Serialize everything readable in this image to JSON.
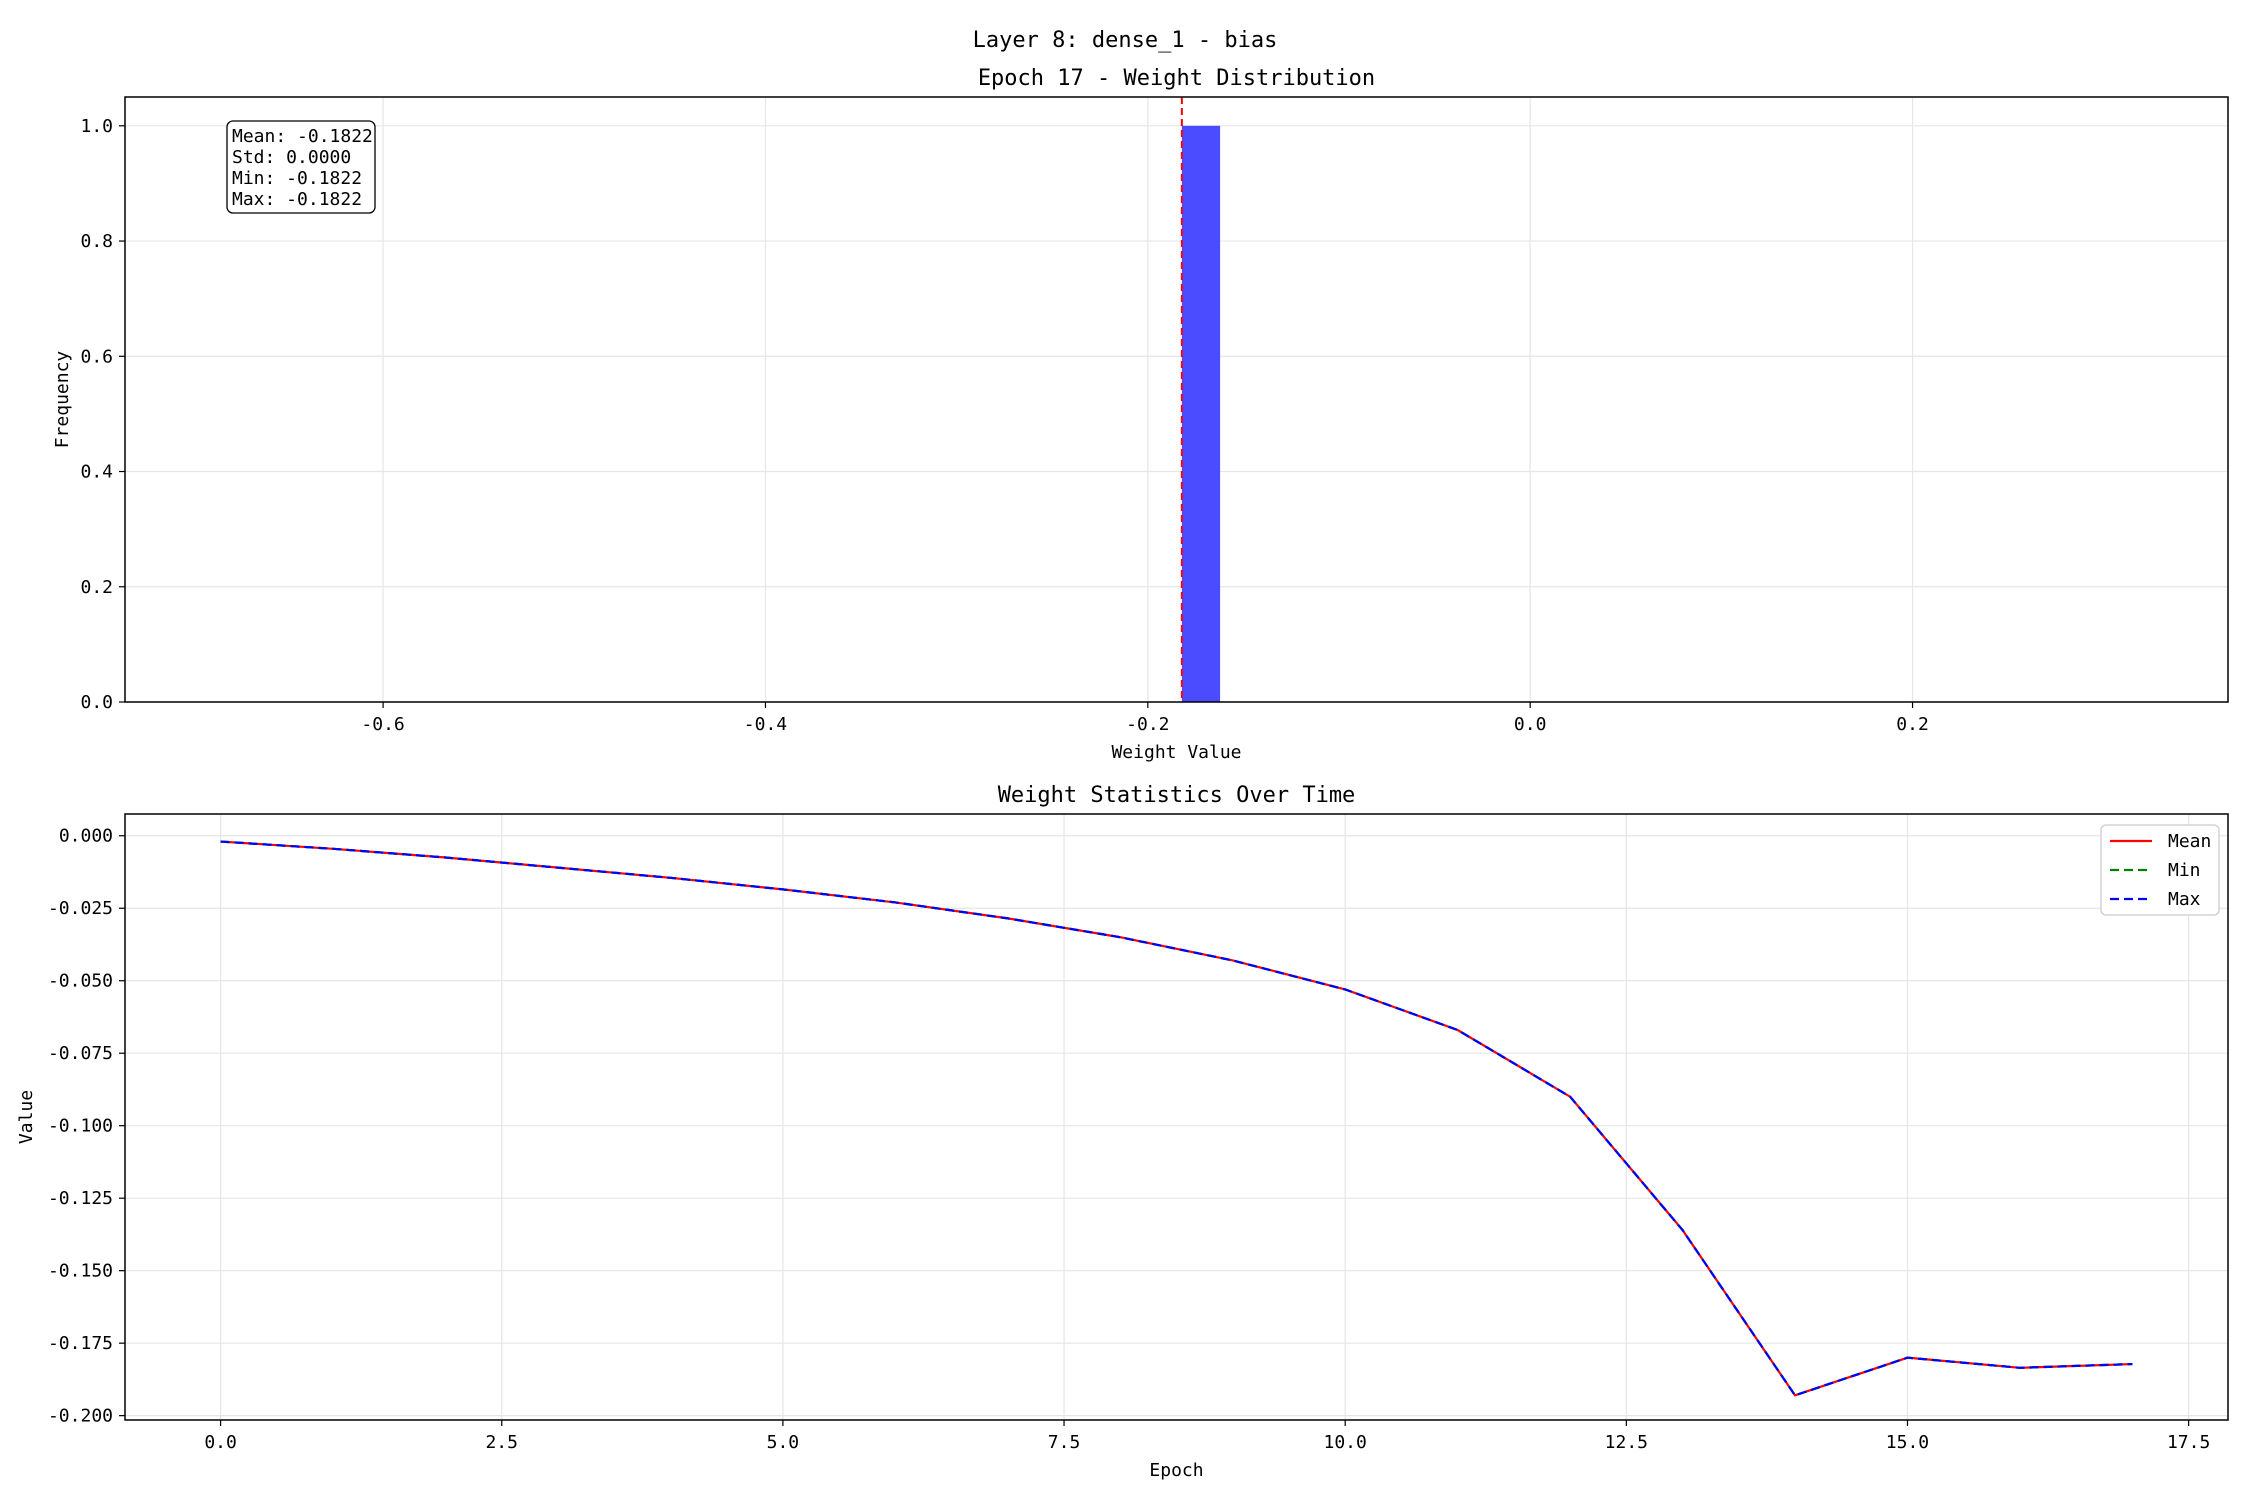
{
  "figure": {
    "suptitle": "Layer 8: dense_1 - bias"
  },
  "colors": {
    "bar": "#4b4bff",
    "mean_line": "#ff0000",
    "min_line": "#008000",
    "max_line": "#0000ff",
    "grid": "#e6e6e6"
  },
  "chart_data": [
    {
      "type": "bar",
      "title": "Epoch 17 - Weight Distribution",
      "xlabel": "Weight Value",
      "ylabel": "Frequency",
      "xlim": [
        -0.735,
        0.365
      ],
      "ylim": [
        0,
        1.05
      ],
      "xticks": [
        -0.6,
        -0.4,
        -0.2,
        0.0,
        0.2
      ],
      "xtick_labels": [
        "-0.6",
        "-0.4",
        "-0.2",
        "0.0",
        "0.2"
      ],
      "yticks": [
        0.0,
        0.2,
        0.4,
        0.6,
        0.8,
        1.0
      ],
      "ytick_labels": [
        "0.0",
        "0.2",
        "0.4",
        "0.6",
        "0.8",
        "1.0"
      ],
      "bins": [
        {
          "x0": -0.1822,
          "x1": -0.1622,
          "value": 1.0
        }
      ],
      "mean_line": -0.1822,
      "grid": true,
      "stats_box": {
        "position": "top-left",
        "lines": [
          "Mean: -0.1822",
          "Std: 0.0000",
          "Min: -0.1822",
          "Max: -0.1822"
        ]
      }
    },
    {
      "type": "line",
      "title": "Weight Statistics Over Time",
      "xlabel": "Epoch",
      "ylabel": "Value",
      "xlim": [
        -0.85,
        17.85
      ],
      "ylim": [
        -0.2015,
        0.0075
      ],
      "xticks": [
        0.0,
        2.5,
        5.0,
        7.5,
        10.0,
        12.5,
        15.0,
        17.5
      ],
      "xtick_labels": [
        "0.0",
        "2.5",
        "5.0",
        "7.5",
        "10.0",
        "12.5",
        "15.0",
        "17.5"
      ],
      "yticks": [
        0.0,
        -0.025,
        -0.05,
        -0.075,
        -0.1,
        -0.125,
        -0.15,
        -0.175,
        -0.2
      ],
      "ytick_labels": [
        "0.000",
        "-0.025",
        "-0.050",
        "-0.075",
        "-0.100",
        "-0.125",
        "-0.150",
        "-0.175",
        "-0.200"
      ],
      "grid": true,
      "legend": "top-right",
      "x": [
        0,
        1,
        2,
        3,
        4,
        5,
        6,
        7,
        8,
        9,
        10,
        11,
        12,
        13,
        14,
        15,
        16,
        17
      ],
      "series": [
        {
          "name": "Mean",
          "style": "solid",
          "values": [
            -0.002,
            -0.0045,
            -0.0075,
            -0.011,
            -0.0145,
            -0.0185,
            -0.023,
            -0.0285,
            -0.035,
            -0.043,
            -0.053,
            -0.067,
            -0.09,
            -0.136,
            -0.193,
            -0.18,
            -0.1835,
            -0.1822
          ]
        },
        {
          "name": "Min",
          "style": "dashed",
          "values": [
            -0.002,
            -0.0045,
            -0.0075,
            -0.011,
            -0.0145,
            -0.0185,
            -0.023,
            -0.0285,
            -0.035,
            -0.043,
            -0.053,
            -0.067,
            -0.09,
            -0.136,
            -0.193,
            -0.18,
            -0.1835,
            -0.1822
          ]
        },
        {
          "name": "Max",
          "style": "dashed",
          "values": [
            -0.002,
            -0.0045,
            -0.0075,
            -0.011,
            -0.0145,
            -0.0185,
            -0.023,
            -0.0285,
            -0.035,
            -0.043,
            -0.053,
            -0.067,
            -0.09,
            -0.136,
            -0.193,
            -0.18,
            -0.1835,
            -0.1822
          ]
        }
      ]
    }
  ]
}
